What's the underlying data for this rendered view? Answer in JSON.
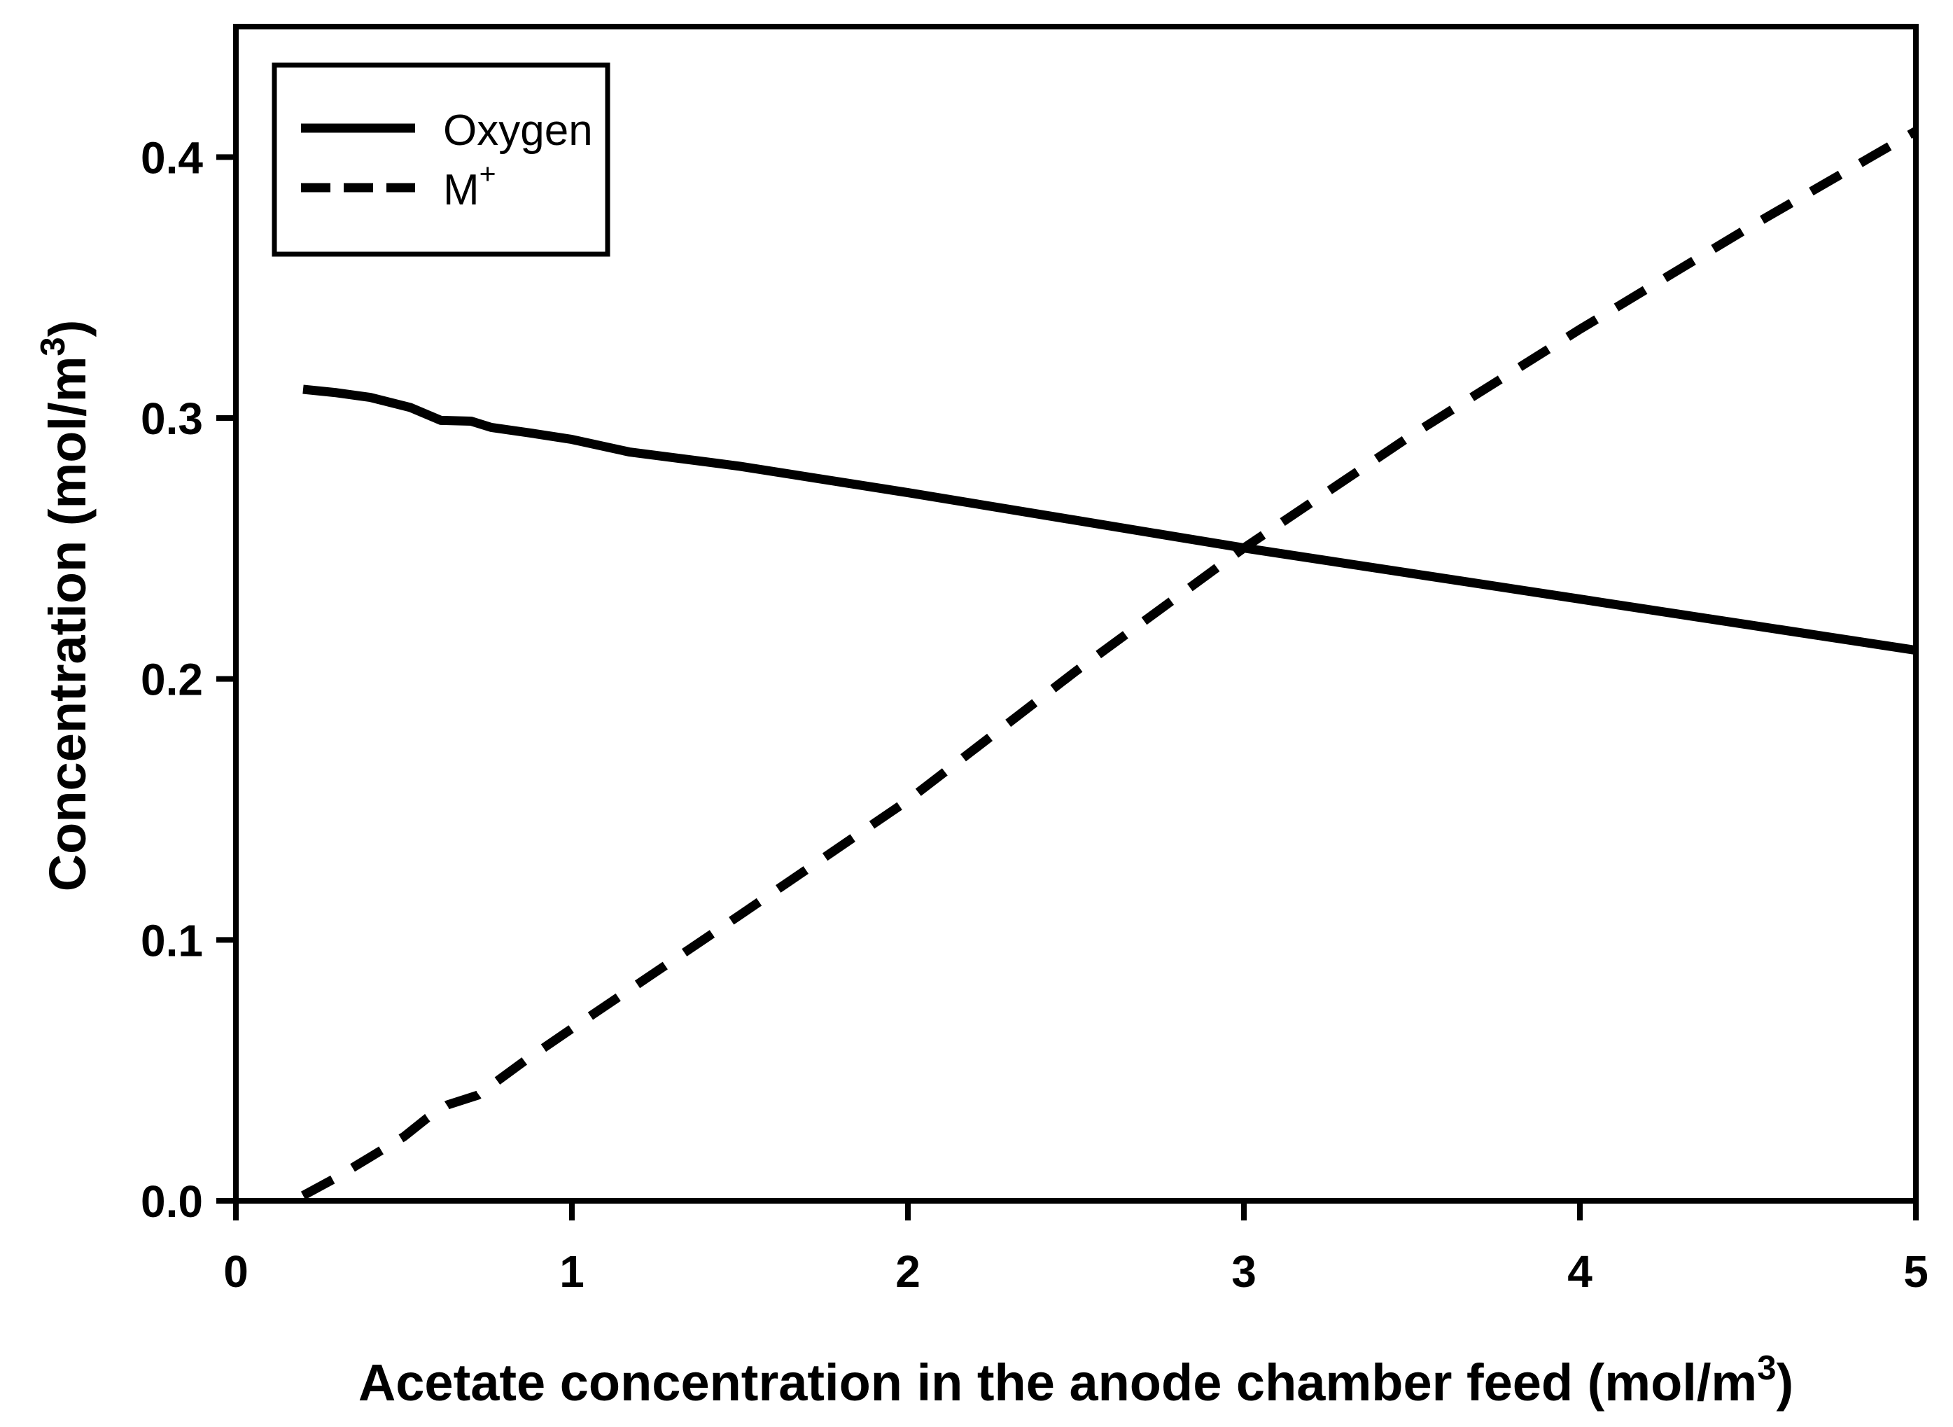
{
  "figure": {
    "background_color": "#ffffff",
    "ink_color": "#000000"
  },
  "chart_data": {
    "type": "line",
    "title": "",
    "xlabel_pre": "Acetate concentration in the anode chamber feed (mol/m",
    "xlabel_sup": "3",
    "xlabel_post": ")",
    "ylabel_pre": "Concentration (mol/m",
    "ylabel_sup": "3",
    "ylabel_post": ")",
    "xlim": [
      0,
      5
    ],
    "ylim": [
      0,
      0.45
    ],
    "x_ticks": [
      0,
      1,
      2,
      3,
      4,
      5
    ],
    "x_tick_labels": [
      "0",
      "1",
      "2",
      "3",
      "4",
      "5"
    ],
    "y_ticks": [
      0.0,
      0.1,
      0.2,
      0.3,
      0.4
    ],
    "y_tick_labels": [
      "0.0",
      "0.1",
      "0.2",
      "0.3",
      "0.4"
    ],
    "grid": false,
    "frame": "full-box",
    "legend": {
      "position": "top-left",
      "entries": [
        {
          "label": "Oxygen",
          "label_sup": "",
          "line_style": "solid"
        },
        {
          "label": "M",
          "label_sup": "+",
          "line_style": "dashed"
        }
      ]
    },
    "series": [
      {
        "name": "Oxygen",
        "line_style": "solid",
        "color": "#000000",
        "points": [
          [
            0.2,
            0.311
          ],
          [
            0.3,
            0.3097
          ],
          [
            0.4,
            0.3079
          ],
          [
            0.52,
            0.304
          ],
          [
            0.61,
            0.2991
          ],
          [
            0.7,
            0.2988
          ],
          [
            0.76,
            0.2964
          ],
          [
            0.89,
            0.294
          ],
          [
            1.0,
            0.2918
          ],
          [
            1.17,
            0.287
          ],
          [
            1.5,
            0.2815
          ],
          [
            2.0,
            0.2714
          ],
          [
            2.5,
            0.2608
          ],
          [
            3.0,
            0.2502
          ],
          [
            3.5,
            0.2404
          ],
          [
            4.0,
            0.2306
          ],
          [
            4.5,
            0.2208
          ],
          [
            5.0,
            0.211
          ]
        ]
      },
      {
        "name": "M+",
        "line_style": "dashed",
        "color": "#000000",
        "points": [
          [
            0.2,
            0.002
          ],
          [
            0.3,
            0.009
          ],
          [
            0.4,
            0.0168
          ],
          [
            0.5,
            0.0246
          ],
          [
            0.57,
            0.0318
          ],
          [
            0.63,
            0.0368
          ],
          [
            0.72,
            0.0405
          ],
          [
            0.86,
            0.0537
          ],
          [
            1.0,
            0.066
          ],
          [
            1.5,
            0.1095
          ],
          [
            2.0,
            0.1535
          ],
          [
            2.5,
            0.203
          ],
          [
            3.0,
            0.2502
          ],
          [
            3.5,
            0.2935
          ],
          [
            4.0,
            0.334
          ],
          [
            4.5,
            0.3728
          ],
          [
            5.0,
            0.41
          ]
        ]
      }
    ]
  }
}
